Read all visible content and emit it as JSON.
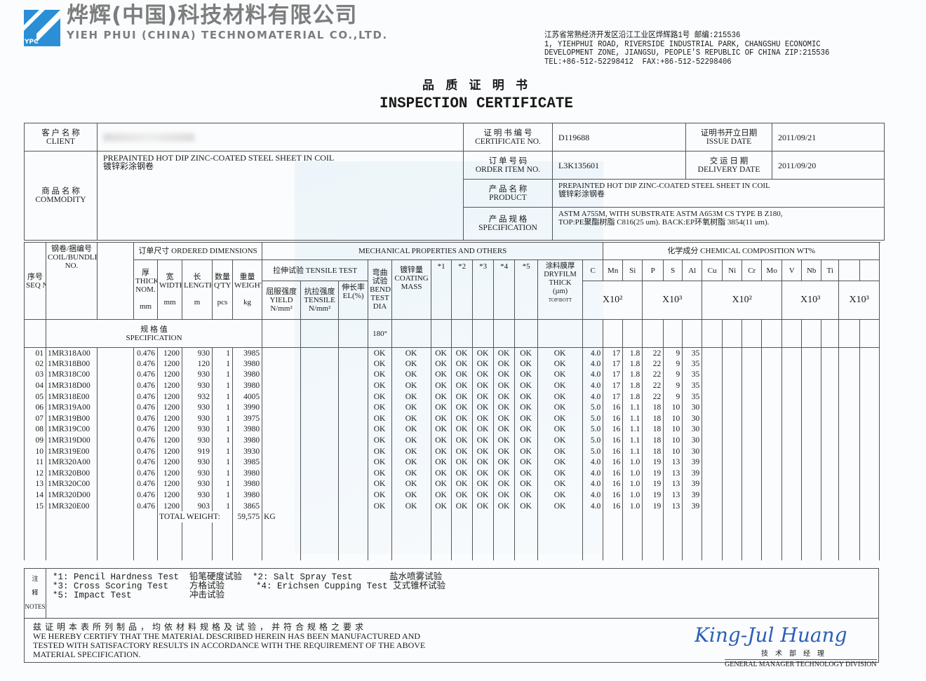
{
  "company": {
    "name_cn": "烨辉(中国)科技材料有限公司",
    "name_en": "YIEH PHUI (CHINA) TECHNOMATERIAL CO.,LTD.",
    "logo_text": "YPC",
    "address": "江苏省常熟经济开发区沿江工业区烨辉路1号 邮编:215536\n1, YIEHPHUI ROAD, RIVERSIDE INDUSTRIAL PARK, CHANGSHU ECONOMIC\nDEVELOPMENT ZONE, JIANGSU, PEOPLE'S REPUBLIC OF CHINA ZIP:215536\nTEL:+86-512-52298412  FAX:+86-512-52298406",
    "brand_color": "#2a8fd6"
  },
  "title": {
    "cn": "品 质 证 明 书",
    "en": "INSPECTION CERTIFICATE"
  },
  "info": {
    "client_label_cn": "客 户 名 称",
    "client_label_en": "CLIENT",
    "commodity_label_cn": "商 品 名 称",
    "commodity_label_en": "COMMODITY",
    "commodity_value_en": "PREPAINTED HOT DIP ZINC-COATED STEEL SHEET IN COIL",
    "commodity_value_cn": "镀锌彩涂钢卷",
    "cert_no_label_cn": "证 明 书 编 号",
    "cert_no_label_en": "CERTIFICATE NO.",
    "cert_no": "D119688",
    "issue_label_cn": "证明书开立日期",
    "issue_label_en": "ISSUE DATE",
    "issue_date": "2011/09/21",
    "order_label_cn": "订 单 号 码",
    "order_label_en": "ORDER ITEM NO.",
    "order_no": "L3K135601",
    "delivery_label_cn": "交 运 日 期",
    "delivery_label_en": "DELIVERY DATE",
    "delivery_date": "2011/09/20",
    "product_label_cn": "产 品 名 称",
    "product_label_en": "PRODUCT",
    "product_en": "PREPAINTED HOT DIP ZINC-COATED STEEL SHEET IN COIL",
    "product_cn": "镀锌彩涂钢卷",
    "spec_label_cn": "产 品 规 格",
    "spec_label_en": "SPECIFICATION",
    "spec_line1": "ASTM A755M, WITH SUBSTRATE ASTM A653M CS TYPE B Z180,",
    "spec_line2": "TOP:PE聚酯树脂 C816(25 um).  BACK:EP环氧树脂 3854(11 um)."
  },
  "table": {
    "h": {
      "seq_cn": "序号",
      "seq_en": "SEQ NO.",
      "coil_cn": "钢卷/捆编号",
      "coil_en": "COIL/BUNDLE NO.",
      "ordered": "订单尺寸 ORDERED DIMENSIONS",
      "mech": "MECHANICAL PROPERTIES AND OTHERS",
      "chem": "化学成分 CHEMICAL COMPOSITION WT%",
      "thick": "厚 THICK NOM.",
      "thick_u": "mm",
      "width": "宽 WIDTH",
      "width_u": "mm",
      "length": "长 LENGTH",
      "length_u": "m",
      "qty": "数量 Q'TY",
      "qty_u": "pcs",
      "weight": "重量 WEIGHT",
      "weight_u": "kg",
      "tensile_test": "拉伸试验 TENSILE TEST",
      "yield": "屈服强度 YIELD",
      "yield_u": "N/mm²",
      "tensile": "抗拉强度 TENSILE",
      "tensile_u": "N/mm²",
      "el": "伸长率 EL(%)",
      "bend": "弯曲试验 BEND TEST",
      "bend_dia": "DIA",
      "coating": "镀锌量 COATING MASS",
      "t1": "*1",
      "t2": "*2",
      "t3": "*3",
      "t4": "*4",
      "t5": "*5",
      "dryfilm": "涂料膜厚 DRYFILM THICK",
      "dryfilm_u": "(µm)",
      "dryfilm_sub": "TOP/BOTT",
      "elements": [
        "C",
        "Mn",
        "Si",
        "P",
        "S",
        "Al",
        "Cu",
        "Ni",
        "Cr",
        "Mo",
        "V",
        "Nb",
        "Ti",
        "",
        ""
      ],
      "mult": [
        "X10²",
        "X10³",
        "X10²",
        "X10³",
        "X10³"
      ],
      "spec_cn": "规  格  值",
      "spec_en": "SPECIFICATION",
      "bend_spec": "180°"
    },
    "rows": [
      [
        "01",
        "1MR318A00",
        "0.476",
        "1200",
        "930",
        "1",
        "3985",
        "OK",
        "OK",
        "OK",
        "OK",
        "OK",
        "OK",
        "OK",
        "OK",
        "4.0",
        "17",
        "1.8",
        "22",
        "9",
        "35"
      ],
      [
        "02",
        "1MR318B00",
        "0.476",
        "1200",
        "120",
        "1",
        "3980",
        "OK",
        "OK",
        "OK",
        "OK",
        "OK",
        "OK",
        "OK",
        "OK",
        "4.0",
        "17",
        "1.8",
        "22",
        "9",
        "35"
      ],
      [
        "03",
        "1MR318C00",
        "0.476",
        "1200",
        "930",
        "1",
        "3980",
        "OK",
        "OK",
        "OK",
        "OK",
        "OK",
        "OK",
        "OK",
        "OK",
        "4.0",
        "17",
        "1.8",
        "22",
        "9",
        "35"
      ],
      [
        "04",
        "1MR318D00",
        "0.476",
        "1200",
        "930",
        "1",
        "3980",
        "OK",
        "OK",
        "OK",
        "OK",
        "OK",
        "OK",
        "OK",
        "OK",
        "4.0",
        "17",
        "1.8",
        "22",
        "9",
        "35"
      ],
      [
        "05",
        "1MR318E00",
        "0.476",
        "1200",
        "932",
        "1",
        "4005",
        "OK",
        "OK",
        "OK",
        "OK",
        "OK",
        "OK",
        "OK",
        "OK",
        "4.0",
        "17",
        "1.8",
        "22",
        "9",
        "35"
      ],
      [
        "06",
        "1MR319A00",
        "0.476",
        "1200",
        "930",
        "1",
        "3990",
        "OK",
        "OK",
        "OK",
        "OK",
        "OK",
        "OK",
        "OK",
        "OK",
        "5.0",
        "16",
        "1.1",
        "18",
        "10",
        "30"
      ],
      [
        "07",
        "1MR319B00",
        "0.476",
        "1200",
        "930",
        "1",
        "3975",
        "OK",
        "OK",
        "OK",
        "OK",
        "OK",
        "OK",
        "OK",
        "OK",
        "5.0",
        "16",
        "1.1",
        "18",
        "10",
        "30"
      ],
      [
        "08",
        "1MR319C00",
        "0.476",
        "1200",
        "930",
        "1",
        "3980",
        "OK",
        "OK",
        "OK",
        "OK",
        "OK",
        "OK",
        "OK",
        "OK",
        "5.0",
        "16",
        "1.1",
        "18",
        "10",
        "30"
      ],
      [
        "09",
        "1MR319D00",
        "0.476",
        "1200",
        "930",
        "1",
        "3980",
        "OK",
        "OK",
        "OK",
        "OK",
        "OK",
        "OK",
        "OK",
        "OK",
        "5.0",
        "16",
        "1.1",
        "18",
        "10",
        "30"
      ],
      [
        "10",
        "1MR319E00",
        "0.476",
        "1200",
        "919",
        "1",
        "3930",
        "OK",
        "OK",
        "OK",
        "OK",
        "OK",
        "OK",
        "OK",
        "OK",
        "5.0",
        "16",
        "1.1",
        "18",
        "10",
        "30"
      ],
      [
        "11",
        "1MR320A00",
        "0.476",
        "1200",
        "930",
        "1",
        "3985",
        "OK",
        "OK",
        "OK",
        "OK",
        "OK",
        "OK",
        "OK",
        "OK",
        "4.0",
        "16",
        "1.0",
        "19",
        "13",
        "39"
      ],
      [
        "12",
        "1MR320B00",
        "0.476",
        "1200",
        "930",
        "1",
        "3980",
        "OK",
        "OK",
        "OK",
        "OK",
        "OK",
        "OK",
        "OK",
        "OK",
        "4.0",
        "16",
        "1.0",
        "19",
        "13",
        "39"
      ],
      [
        "13",
        "1MR320C00",
        "0.476",
        "1200",
        "930",
        "1",
        "3980",
        "OK",
        "OK",
        "OK",
        "OK",
        "OK",
        "OK",
        "OK",
        "OK",
        "4.0",
        "16",
        "1.0",
        "19",
        "13",
        "39"
      ],
      [
        "14",
        "1MR320D00",
        "0.476",
        "1200",
        "930",
        "1",
        "3980",
        "OK",
        "OK",
        "OK",
        "OK",
        "OK",
        "OK",
        "OK",
        "OK",
        "4.0",
        "16",
        "1.0",
        "19",
        "13",
        "39"
      ],
      [
        "15",
        "1MR320E00",
        "0.476",
        "1200",
        "903",
        "1",
        "3865",
        "OK",
        "OK",
        "OK",
        "OK",
        "OK",
        "OK",
        "OK",
        "OK",
        "4.0",
        "16",
        "1.0",
        "19",
        "13",
        "39"
      ]
    ],
    "total_label": "TOTAL WEIGHT:",
    "total_value": "59,575",
    "total_unit": "KG"
  },
  "notes": {
    "label_cn1": "注",
    "label_cn2": "释",
    "label_en": "NOTES",
    "text": "*1: Pencil Hardness Test  铅笔硬度试验  *2: Salt Spray Test       盐水喷雾试验\n*3: Cross Scoring Test    方格试验      *4: Erichsen Cupping Test 艾式锥杯试验\n*5: Impact Test           冲击试验",
    "cert_cn": "兹 证 明 本 表 所 列 制 品 ， 均 依 材 料 规 格 及 试 验 ， 并 符 合 规 格 之 要 求",
    "cert_en1": "WE HEREBY CERTIFY THAT THE MATERIAL  DESCRIBED  HEREIN  HAS BEEN  MANUFACTURED  AND",
    "cert_en2": "TESTED WITH SATISFACTORY RESULTS IN ACCORDANCE WITH THE REQUIREMENT  OF  THE  ABOVE",
    "cert_en3": "MATERIAL SPECIFICATION."
  },
  "signature": {
    "name": "King-Jul Huang",
    "title_cn": "技术部经理",
    "title_en": "GENERAL MANAGER TECHNOLOGY DIVISION",
    "ink_color": "#2b5fb8"
  }
}
